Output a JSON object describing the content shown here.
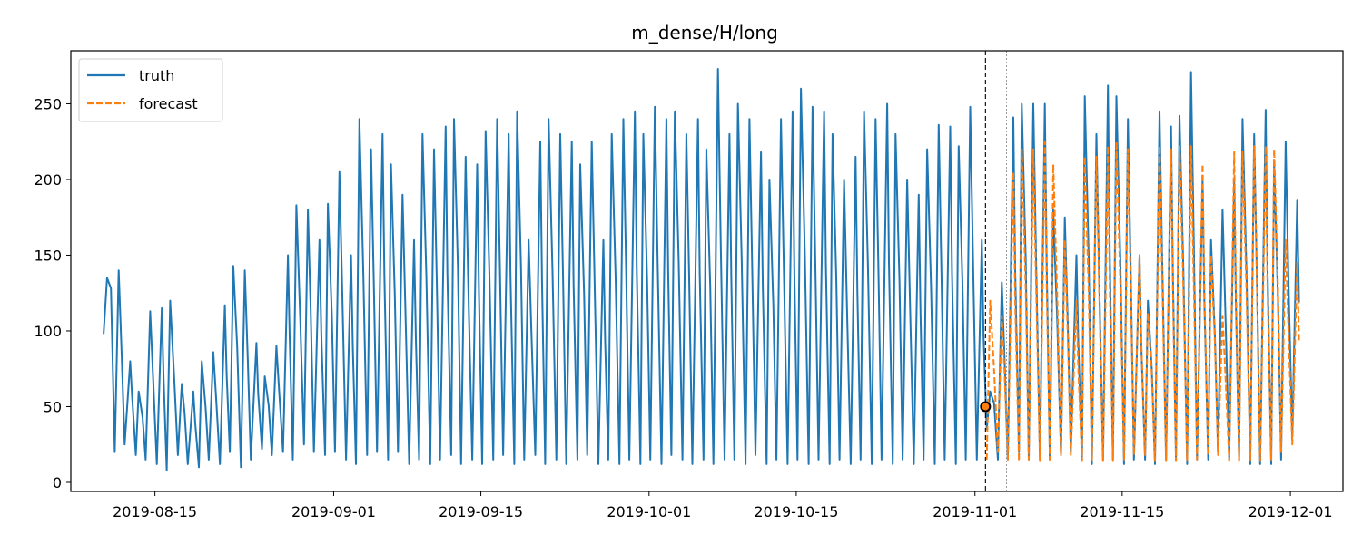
{
  "chart_data": {
    "type": "line",
    "title": "m_dense/H/long",
    "xlabel": "",
    "ylabel": "",
    "x_range": [
      "2019-08-07",
      "2019-12-06"
    ],
    "ylim": [
      -6,
      285
    ],
    "x_ticks": [
      "2019-08-15",
      "2019-09-01",
      "2019-09-15",
      "2019-10-01",
      "2019-10-15",
      "2019-11-01",
      "2019-11-15",
      "2019-12-01"
    ],
    "y_ticks": [
      0,
      50,
      100,
      150,
      200,
      250
    ],
    "legend": {
      "location": "upper left",
      "entries": [
        "truth",
        "forecast"
      ]
    },
    "forecast_start": "2019-11-02 00:00",
    "forecast_start_value": 50,
    "context_end": "2019-11-04 00:00",
    "series": [
      {
        "name": "truth",
        "color": "#1f77b4",
        "style": "solid",
        "sampling": "daily peak and trough (hourly data)",
        "x": [
          "2019-08-10",
          "2019-08-11",
          "2019-08-12",
          "2019-08-13",
          "2019-08-14",
          "2019-08-15",
          "2019-08-16",
          "2019-08-17",
          "2019-08-18",
          "2019-08-19",
          "2019-08-20",
          "2019-08-21",
          "2019-08-22",
          "2019-08-23",
          "2019-08-24",
          "2019-08-25",
          "2019-08-26",
          "2019-08-27",
          "2019-08-28",
          "2019-08-29",
          "2019-08-30",
          "2019-08-31",
          "2019-09-01",
          "2019-09-02",
          "2019-09-03",
          "2019-09-04",
          "2019-09-05",
          "2019-09-06",
          "2019-09-07",
          "2019-09-08",
          "2019-09-09",
          "2019-09-10",
          "2019-09-11",
          "2019-09-12",
          "2019-09-13",
          "2019-09-14",
          "2019-09-15",
          "2019-09-16",
          "2019-09-17",
          "2019-09-18",
          "2019-09-19",
          "2019-09-20",
          "2019-09-21",
          "2019-09-22",
          "2019-09-23",
          "2019-09-24",
          "2019-09-25",
          "2019-09-26",
          "2019-09-27",
          "2019-09-28",
          "2019-09-29",
          "2019-09-30",
          "2019-10-01",
          "2019-10-02",
          "2019-10-03",
          "2019-10-04",
          "2019-10-05",
          "2019-10-06",
          "2019-10-07",
          "2019-10-08",
          "2019-10-09",
          "2019-10-10",
          "2019-10-11",
          "2019-10-12",
          "2019-10-13",
          "2019-10-14",
          "2019-10-15",
          "2019-10-16",
          "2019-10-17",
          "2019-10-18",
          "2019-10-19",
          "2019-10-20",
          "2019-10-21",
          "2019-10-22",
          "2019-10-23",
          "2019-10-24",
          "2019-10-25",
          "2019-10-26",
          "2019-10-27",
          "2019-10-28",
          "2019-10-29",
          "2019-10-30",
          "2019-10-31",
          "2019-11-01",
          "2019-11-02",
          "2019-11-03",
          "2019-11-04",
          "2019-11-05",
          "2019-11-06",
          "2019-11-07",
          "2019-11-08",
          "2019-11-09",
          "2019-11-10",
          "2019-11-11",
          "2019-11-12",
          "2019-11-13",
          "2019-11-14",
          "2019-11-15",
          "2019-11-16",
          "2019-11-17",
          "2019-11-18",
          "2019-11-19",
          "2019-11-20",
          "2019-11-21",
          "2019-11-22",
          "2019-11-23",
          "2019-11-24",
          "2019-11-25",
          "2019-11-26",
          "2019-11-27",
          "2019-11-28",
          "2019-11-29",
          "2019-11-30",
          "2019-12-01"
        ],
        "peak": [
          135,
          140,
          80,
          60,
          113,
          115,
          120,
          65,
          60,
          80,
          86,
          117,
          143,
          140,
          92,
          70,
          90,
          150,
          183,
          180,
          160,
          184,
          205,
          150,
          240,
          220,
          230,
          210,
          190,
          160,
          230,
          220,
          235,
          240,
          215,
          210,
          232,
          240,
          230,
          245,
          160,
          225,
          240,
          230,
          225,
          210,
          225,
          160,
          230,
          240,
          245,
          230,
          248,
          240,
          245,
          230,
          240,
          220,
          273,
          230,
          250,
          240,
          218,
          200,
          240,
          245,
          260,
          248,
          245,
          230,
          200,
          215,
          245,
          240,
          250,
          230,
          200,
          190,
          220,
          236,
          235,
          222,
          248,
          160,
          60,
          132,
          241,
          250,
          250,
          250,
          180,
          175,
          150,
          255,
          230,
          262,
          255,
          240,
          150,
          120,
          245,
          235,
          242,
          271,
          200,
          160,
          180,
          200,
          240,
          230,
          246,
          210,
          225,
          186
        ],
        "trough": [
          98,
          20,
          25,
          18,
          15,
          12,
          8,
          18,
          12,
          10,
          15,
          12,
          20,
          10,
          15,
          22,
          18,
          20,
          15,
          25,
          20,
          18,
          20,
          15,
          12,
          18,
          20,
          15,
          20,
          12,
          15,
          12,
          15,
          18,
          12,
          15,
          12,
          15,
          18,
          12,
          15,
          18,
          12,
          15,
          12,
          15,
          18,
          12,
          15,
          12,
          15,
          12,
          15,
          12,
          18,
          15,
          12,
          15,
          12,
          15,
          15,
          12,
          18,
          12,
          15,
          12,
          15,
          12,
          15,
          12,
          15,
          12,
          15,
          12,
          15,
          12,
          15,
          12,
          15,
          12,
          15,
          12,
          15,
          15,
          35,
          15,
          15,
          20,
          15,
          15,
          15,
          18,
          20,
          15,
          12,
          15,
          15,
          12,
          15,
          15,
          12,
          15,
          15,
          12,
          15,
          15,
          20,
          15,
          15,
          12,
          12,
          12,
          15,
          30
        ]
      },
      {
        "name": "forecast",
        "color": "#ff7f0e",
        "style": "dashed",
        "x": [
          "2019-11-02",
          "2019-11-03",
          "2019-11-04",
          "2019-11-05",
          "2019-11-06",
          "2019-11-07",
          "2019-11-08",
          "2019-11-09",
          "2019-11-10",
          "2019-11-11",
          "2019-11-12",
          "2019-11-13",
          "2019-11-14",
          "2019-11-15",
          "2019-11-16",
          "2019-11-17",
          "2019-11-18",
          "2019-11-19",
          "2019-11-20",
          "2019-11-21",
          "2019-11-22",
          "2019-11-23",
          "2019-11-24",
          "2019-11-25",
          "2019-11-26",
          "2019-11-27",
          "2019-11-28",
          "2019-11-29",
          "2019-11-30",
          "2019-12-01"
        ],
        "peak": [
          120,
          110,
          205,
          220,
          220,
          225,
          210,
          160,
          120,
          215,
          215,
          222,
          225,
          220,
          150,
          112,
          222,
          220,
          222,
          222,
          210,
          150,
          110,
          218,
          218,
          222,
          222,
          220,
          160,
          145
        ],
        "trough": [
          15,
          20,
          15,
          14,
          15,
          14,
          15,
          18,
          18,
          14,
          15,
          14,
          14,
          15,
          18,
          18,
          14,
          14,
          14,
          14,
          15,
          18,
          18,
          14,
          14,
          14,
          14,
          15,
          20,
          25
        ]
      }
    ]
  }
}
